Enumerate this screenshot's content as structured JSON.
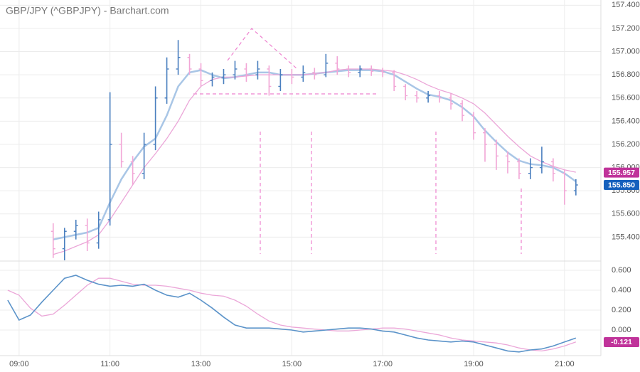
{
  "chart_data": [
    {
      "type": "ohlc",
      "title": "GBP/JPY (^GBPJPY) - Barchart.com",
      "x": [
        9.75,
        10,
        10.25,
        10.5,
        10.75,
        11,
        11.25,
        11.5,
        11.75,
        12,
        12.25,
        12.5,
        12.75,
        13,
        13.25,
        13.5,
        13.75,
        14,
        14.25,
        14.5,
        14.75,
        15,
        15.25,
        15.5,
        15.75,
        16,
        16.25,
        16.5,
        16.75,
        17,
        17.25,
        17.5,
        17.75,
        18,
        18.25,
        18.5,
        18.75,
        19,
        19.25,
        19.5,
        19.75,
        20,
        20.25,
        20.5,
        20.75,
        21,
        21.25
      ],
      "open": [
        155.45,
        155.3,
        155.45,
        155.5,
        155.35,
        155.55,
        156.2,
        156.05,
        155.95,
        156.2,
        156.6,
        156.85,
        156.95,
        156.85,
        156.75,
        156.78,
        156.8,
        156.85,
        156.8,
        156.85,
        156.7,
        156.8,
        156.78,
        156.82,
        156.8,
        156.9,
        156.85,
        156.82,
        156.85,
        156.83,
        156.82,
        156.7,
        156.62,
        156.6,
        156.62,
        156.6,
        156.55,
        156.45,
        156.3,
        156.2,
        156.1,
        156.05,
        155.95,
        156.0,
        156.05,
        155.95,
        155.8
      ],
      "high": [
        155.52,
        155.48,
        155.55,
        155.56,
        155.62,
        156.65,
        156.3,
        156.1,
        156.3,
        156.7,
        156.95,
        157.1,
        156.98,
        156.9,
        156.82,
        156.85,
        156.92,
        156.9,
        156.92,
        156.88,
        156.85,
        156.85,
        156.88,
        156.86,
        156.98,
        156.96,
        156.88,
        156.88,
        156.88,
        156.86,
        156.84,
        156.72,
        156.66,
        156.66,
        156.66,
        156.64,
        156.58,
        156.48,
        156.34,
        156.24,
        156.14,
        156.08,
        156.08,
        156.18,
        156.08,
        155.98,
        155.9
      ],
      "low": [
        155.22,
        155.2,
        155.38,
        155.28,
        155.3,
        155.5,
        156.0,
        155.85,
        155.9,
        156.15,
        156.55,
        156.8,
        156.8,
        156.7,
        156.7,
        156.72,
        156.76,
        156.74,
        156.76,
        156.62,
        156.66,
        156.72,
        156.74,
        156.76,
        156.78,
        156.8,
        156.78,
        156.78,
        156.79,
        156.78,
        156.66,
        156.58,
        156.56,
        156.56,
        156.56,
        156.5,
        156.4,
        156.24,
        156.05,
        155.98,
        155.95,
        155.9,
        155.9,
        155.95,
        155.88,
        155.68,
        155.76
      ],
      "close": [
        155.3,
        155.45,
        155.5,
        155.35,
        155.55,
        156.2,
        156.05,
        155.95,
        156.2,
        156.6,
        156.85,
        156.95,
        156.85,
        156.75,
        156.78,
        156.8,
        156.85,
        156.8,
        156.85,
        156.7,
        156.8,
        156.78,
        156.82,
        156.8,
        156.9,
        156.85,
        156.82,
        156.85,
        156.83,
        156.82,
        156.7,
        156.62,
        156.6,
        156.62,
        156.6,
        156.55,
        156.45,
        156.3,
        156.2,
        156.1,
        156.05,
        155.95,
        156.0,
        156.05,
        155.95,
        155.8,
        155.85
      ],
      "up_color": "#4a7fbf",
      "down_color": "#f2a6d6",
      "series": [
        {
          "color": "#a9c6e6",
          "width": 2.5,
          "values": [
            155.38,
            155.4,
            155.42,
            155.44,
            155.48,
            155.7,
            155.9,
            156.05,
            156.18,
            156.25,
            156.45,
            156.7,
            156.82,
            156.84,
            156.8,
            156.77,
            156.78,
            156.8,
            156.82,
            156.82,
            156.8,
            156.8,
            156.8,
            156.81,
            156.82,
            156.83,
            156.84,
            156.84,
            156.84,
            156.83,
            156.8,
            156.74,
            156.68,
            156.63,
            156.61,
            156.58,
            156.52,
            156.44,
            156.32,
            156.22,
            156.13,
            156.06,
            156.03,
            156.02,
            156.0,
            155.95,
            155.88
          ]
        },
        {
          "color": "#eba6d8",
          "width": 1.3,
          "values": [
            155.25,
            155.28,
            155.32,
            155.36,
            155.42,
            155.55,
            155.7,
            155.85,
            156.0,
            156.12,
            156.25,
            156.4,
            156.58,
            156.7,
            156.76,
            156.78,
            156.78,
            156.79,
            156.8,
            156.8,
            156.8,
            156.8,
            156.8,
            156.81,
            156.82,
            156.84,
            156.85,
            156.85,
            156.85,
            156.84,
            156.83,
            156.8,
            156.76,
            156.71,
            156.67,
            156.64,
            156.6,
            156.55,
            156.47,
            156.37,
            156.27,
            156.18,
            156.1,
            156.05,
            156.01,
            155.98,
            155.96
          ]
        }
      ],
      "xlim": [
        8.58,
        21.8
      ],
      "ylim": [
        155.2,
        157.445
      ],
      "yticks": [
        {
          "value": 155.4,
          "label": "155.400"
        },
        {
          "value": 155.6,
          "label": "155.600"
        },
        {
          "value": 155.8,
          "label": "155.800"
        },
        {
          "value": 156.0,
          "label": "156.000"
        },
        {
          "value": 156.2,
          "label": "156.200"
        },
        {
          "value": 156.4,
          "label": "156.400"
        },
        {
          "value": 156.6,
          "label": "156.600"
        },
        {
          "value": 156.8,
          "label": "156.800"
        },
        {
          "value": 157.0,
          "label": "157.000"
        },
        {
          "value": 157.2,
          "label": "157.200"
        },
        {
          "value": 157.4,
          "label": "157.400"
        }
      ],
      "last_value_labels": [
        {
          "value": 155.957,
          "label": "155.957",
          "color": "#c0339a"
        },
        {
          "value": 155.85,
          "label": "155.850",
          "color": "#1560bd"
        }
      ]
    },
    {
      "type": "line",
      "x": [
        8.75,
        9,
        9.25,
        9.5,
        9.75,
        10,
        10.25,
        10.5,
        10.75,
        11,
        11.25,
        11.5,
        11.75,
        12,
        12.25,
        12.5,
        12.75,
        13,
        13.25,
        13.5,
        13.75,
        14,
        14.25,
        14.5,
        14.75,
        15,
        15.25,
        15.5,
        15.75,
        16,
        16.25,
        16.5,
        16.75,
        17,
        17.25,
        17.5,
        17.75,
        18,
        18.25,
        18.5,
        18.75,
        19,
        19.25,
        19.5,
        19.75,
        20,
        20.25,
        20.5,
        20.75,
        21,
        21.25
      ],
      "series": [
        {
          "color": "#eba6d8",
          "width": 1.3,
          "values": [
            0.4,
            0.35,
            0.22,
            0.14,
            0.16,
            0.25,
            0.35,
            0.45,
            0.52,
            0.52,
            0.49,
            0.46,
            0.45,
            0.45,
            0.44,
            0.42,
            0.4,
            0.37,
            0.35,
            0.34,
            0.3,
            0.24,
            0.16,
            0.09,
            0.05,
            0.03,
            0.02,
            0.01,
            0.0,
            -0.01,
            -0.01,
            0.0,
            0.01,
            0.02,
            0.02,
            0.01,
            -0.01,
            -0.03,
            -0.05,
            -0.08,
            -0.1,
            -0.11,
            -0.12,
            -0.13,
            -0.15,
            -0.18,
            -0.2,
            -0.21,
            -0.19,
            -0.16,
            -0.12
          ]
        },
        {
          "color": "#5b93c9",
          "width": 1.6,
          "values": [
            0.3,
            0.1,
            0.15,
            0.28,
            0.4,
            0.52,
            0.55,
            0.5,
            0.46,
            0.44,
            0.45,
            0.44,
            0.46,
            0.4,
            0.35,
            0.33,
            0.37,
            0.3,
            0.22,
            0.13,
            0.05,
            0.02,
            0.02,
            0.02,
            0.01,
            0.0,
            -0.02,
            -0.01,
            0.0,
            0.01,
            0.02,
            0.02,
            0.01,
            -0.01,
            -0.02,
            -0.05,
            -0.08,
            -0.1,
            -0.11,
            -0.12,
            -0.11,
            -0.12,
            -0.15,
            -0.18,
            -0.21,
            -0.22,
            -0.2,
            -0.19,
            -0.16,
            -0.12,
            -0.08
          ]
        }
      ],
      "xlim": [
        8.58,
        21.8
      ],
      "xticks": [
        {
          "value": 9,
          "label": "09:00"
        },
        {
          "value": 11,
          "label": "11:00"
        },
        {
          "value": 13,
          "label": "13:00"
        },
        {
          "value": 15,
          "label": "15:00"
        },
        {
          "value": 17,
          "label": "17:00"
        },
        {
          "value": 19,
          "label": "19:00"
        },
        {
          "value": 21,
          "label": "21:00"
        }
      ],
      "ylim": [
        -0.257,
        0.686
      ],
      "yticks": [
        {
          "value": 0,
          "label": "0.000"
        },
        {
          "value": 0.2,
          "label": "0.200"
        },
        {
          "value": 0.4,
          "label": "0.400"
        },
        {
          "value": 0.6,
          "label": "0.600"
        }
      ],
      "last_value_labels": [
        {
          "value": -0.121,
          "label": "-0.121",
          "color": "#c0339a"
        }
      ]
    }
  ]
}
